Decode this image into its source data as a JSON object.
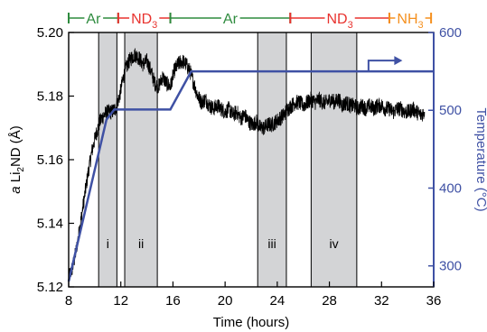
{
  "chart_data": {
    "type": "line",
    "xlabel": "Time (hours)",
    "ylabel": {
      "italic": "a",
      "main": " Li",
      "sub": "2",
      "rest": "ND (Å)"
    },
    "y2label": "Temperature (°C)",
    "xlim": [
      8,
      36
    ],
    "ylim": [
      5.12,
      5.2
    ],
    "y2lim": [
      273,
      600
    ],
    "xticks": [
      8,
      12,
      16,
      20,
      24,
      28,
      32,
      36
    ],
    "yticks": [
      5.12,
      5.14,
      5.16,
      5.18,
      5.2
    ],
    "y2ticks": [
      300,
      400,
      500,
      600
    ],
    "colors": {
      "lattice": "#000000",
      "temperature": "#3f51a4",
      "ar": "#2e8b3e",
      "nd3": "#e8322e",
      "nh3": "#f5901e",
      "region": "#d3d4d6"
    },
    "regions": [
      {
        "label": "i",
        "x0": 10.3,
        "x1": 11.7
      },
      {
        "label": "ii",
        "x0": 12.3,
        "x1": 14.8
      },
      {
        "label": "iii",
        "x0": 22.5,
        "x1": 24.7
      },
      {
        "label": "iv",
        "x0": 26.6,
        "x1": 30.1
      }
    ],
    "gas_segments": [
      {
        "gas": "Ar",
        "x0": 8,
        "x1": 11.8
      },
      {
        "gas": "ND",
        "sub": "3",
        "x0": 11.8,
        "x1": 15.8
      },
      {
        "gas": "Ar",
        "x0": 15.8,
        "x1": 25.0
      },
      {
        "gas": "ND",
        "sub": "3",
        "x0": 25.0,
        "x1": 32.6
      },
      {
        "gas": "NH",
        "sub": "3",
        "x0": 32.6,
        "x1": 35.8
      }
    ],
    "series": [
      {
        "axis": "left",
        "x": [
          8.0,
          8.3,
          8.6,
          8.9,
          9.2,
          9.5,
          9.8,
          10.1,
          10.4,
          10.7,
          11.0,
          11.3,
          11.6,
          11.9,
          12.2,
          12.5,
          12.8,
          13.1,
          13.4,
          13.7,
          14.0,
          14.3,
          14.6,
          14.9,
          15.2,
          15.5,
          15.8,
          16.1,
          16.4,
          16.7,
          17.0,
          17.3,
          17.6,
          17.9,
          18.2,
          18.5,
          18.8,
          19.1,
          19.4,
          19.7,
          20.0,
          20.3,
          20.6,
          20.9,
          21.2,
          21.5,
          21.8,
          22.1,
          22.4,
          22.7,
          23.0,
          23.3,
          23.6,
          23.9,
          24.2,
          24.5,
          24.8,
          25.1,
          25.4,
          25.7,
          26.0,
          26.3,
          26.6,
          26.9,
          27.2,
          27.5,
          27.8,
          28.1,
          28.4,
          28.7,
          29.0,
          29.3,
          29.6,
          29.9,
          30.2,
          30.5,
          30.8,
          31.1,
          31.4,
          31.7,
          32.0,
          32.3,
          32.6,
          32.9,
          33.2,
          33.5,
          33.8,
          34.1,
          34.4,
          34.7,
          35.0,
          35.3
        ],
        "values": [
          5.123,
          5.126,
          5.132,
          5.14,
          5.148,
          5.156,
          5.163,
          5.168,
          5.172,
          5.174,
          5.175,
          5.175,
          5.176,
          5.18,
          5.186,
          5.19,
          5.192,
          5.193,
          5.192,
          5.19,
          5.191,
          5.188,
          5.184,
          5.183,
          5.186,
          5.184,
          5.183,
          5.188,
          5.19,
          5.191,
          5.19,
          5.188,
          5.184,
          5.18,
          5.178,
          5.179,
          5.177,
          5.176,
          5.177,
          5.176,
          5.175,
          5.176,
          5.174,
          5.175,
          5.173,
          5.174,
          5.172,
          5.171,
          5.172,
          5.17,
          5.17,
          5.171,
          5.171,
          5.172,
          5.173,
          5.174,
          5.176,
          5.177,
          5.178,
          5.178,
          5.177,
          5.178,
          5.179,
          5.178,
          5.179,
          5.178,
          5.178,
          5.179,
          5.178,
          5.179,
          5.177,
          5.178,
          5.177,
          5.177,
          5.176,
          5.177,
          5.176,
          5.177,
          5.176,
          5.177,
          5.177,
          5.176,
          5.176,
          5.175,
          5.176,
          5.176,
          5.175,
          5.175,
          5.176,
          5.175,
          5.174,
          5.175
        ]
      },
      {
        "axis": "right",
        "x": [
          8.0,
          10.9,
          11.5,
          14.6,
          15.8,
          17.4,
          36.0
        ],
        "values": [
          280,
          488,
          501,
          501,
          501,
          550,
          550
        ]
      }
    ]
  }
}
